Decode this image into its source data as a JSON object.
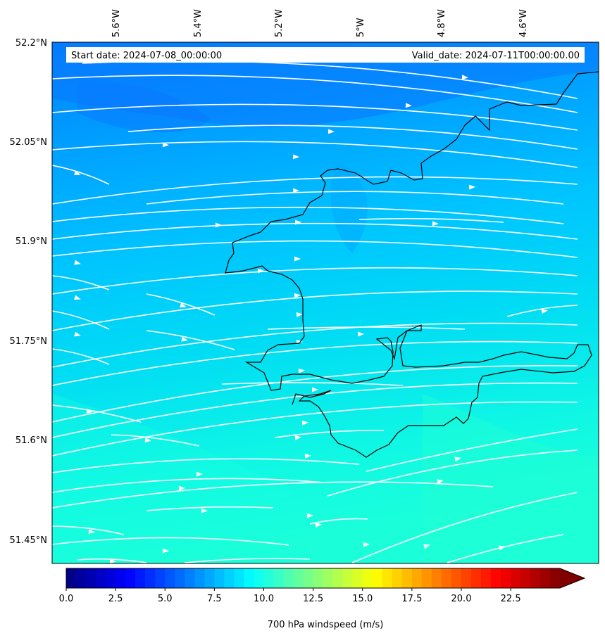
{
  "map": {
    "start_date": "Start date: 2024-07-08_00:00:00",
    "valid_date": "Valid_date: 2024-07-11T00:00:00.00",
    "lat_ticks": [
      "52.2°N",
      "52.05°N",
      "51.9°N",
      "51.75°N",
      "51.6°N",
      "51.45°N"
    ],
    "lon_ticks": [
      "5.6°W",
      "5.4°W",
      "5.2°W",
      "5°W",
      "4.8°W",
      "4.6°W"
    ],
    "extent": {
      "lon_min": -5.75,
      "lon_max": -4.41,
      "lat_min": 51.415,
      "lat_max": 52.2
    }
  },
  "colorbar": {
    "label": "700 hPa windspeed (m/s)",
    "ticks": [
      "0.0",
      "2.5",
      "5.0",
      "7.5",
      "10.0",
      "12.5",
      "15.0",
      "17.5",
      "20.0",
      "22.5"
    ],
    "min": 0,
    "max": 25,
    "colormap": "jet",
    "extend": "max"
  },
  "colors": {
    "field_dark": "#0080ff",
    "field_mid": "#00c4ff",
    "field_light": "#14ffe0",
    "streamline": "#ffffff",
    "coastline": "#000000"
  }
}
